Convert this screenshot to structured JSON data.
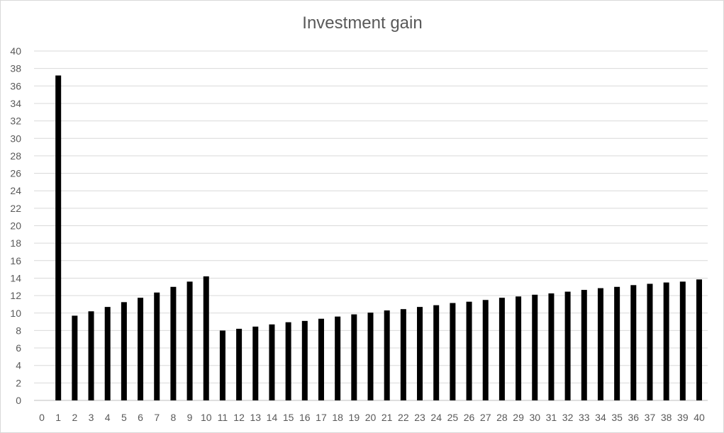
{
  "chart_data": {
    "type": "bar",
    "title": "Investment gain",
    "xlabel": "",
    "ylabel": "",
    "categories": [
      0,
      1,
      2,
      3,
      4,
      5,
      6,
      7,
      8,
      9,
      10,
      11,
      12,
      13,
      14,
      15,
      16,
      17,
      18,
      19,
      20,
      21,
      22,
      23,
      24,
      25,
      26,
      27,
      28,
      29,
      30,
      31,
      32,
      33,
      34,
      35,
      36,
      37,
      38,
      39,
      40
    ],
    "values": [
      0,
      37.2,
      9.7,
      10.2,
      10.7,
      11.25,
      11.75,
      12.35,
      13.0,
      13.6,
      14.2,
      8.0,
      8.2,
      8.45,
      8.7,
      8.95,
      9.1,
      9.35,
      9.6,
      9.85,
      10.05,
      10.3,
      10.45,
      10.7,
      10.9,
      11.15,
      11.3,
      11.5,
      11.75,
      11.9,
      12.1,
      12.25,
      12.45,
      12.65,
      12.85,
      13.0,
      13.2,
      13.35,
      13.5,
      13.6,
      13.85
    ],
    "ylim": [
      0,
      40
    ],
    "ytick_step": 2,
    "grid": true,
    "legend": "none",
    "bar_color": "#000000",
    "grid_color": "#d9d9d9",
    "text_color": "#595959"
  }
}
